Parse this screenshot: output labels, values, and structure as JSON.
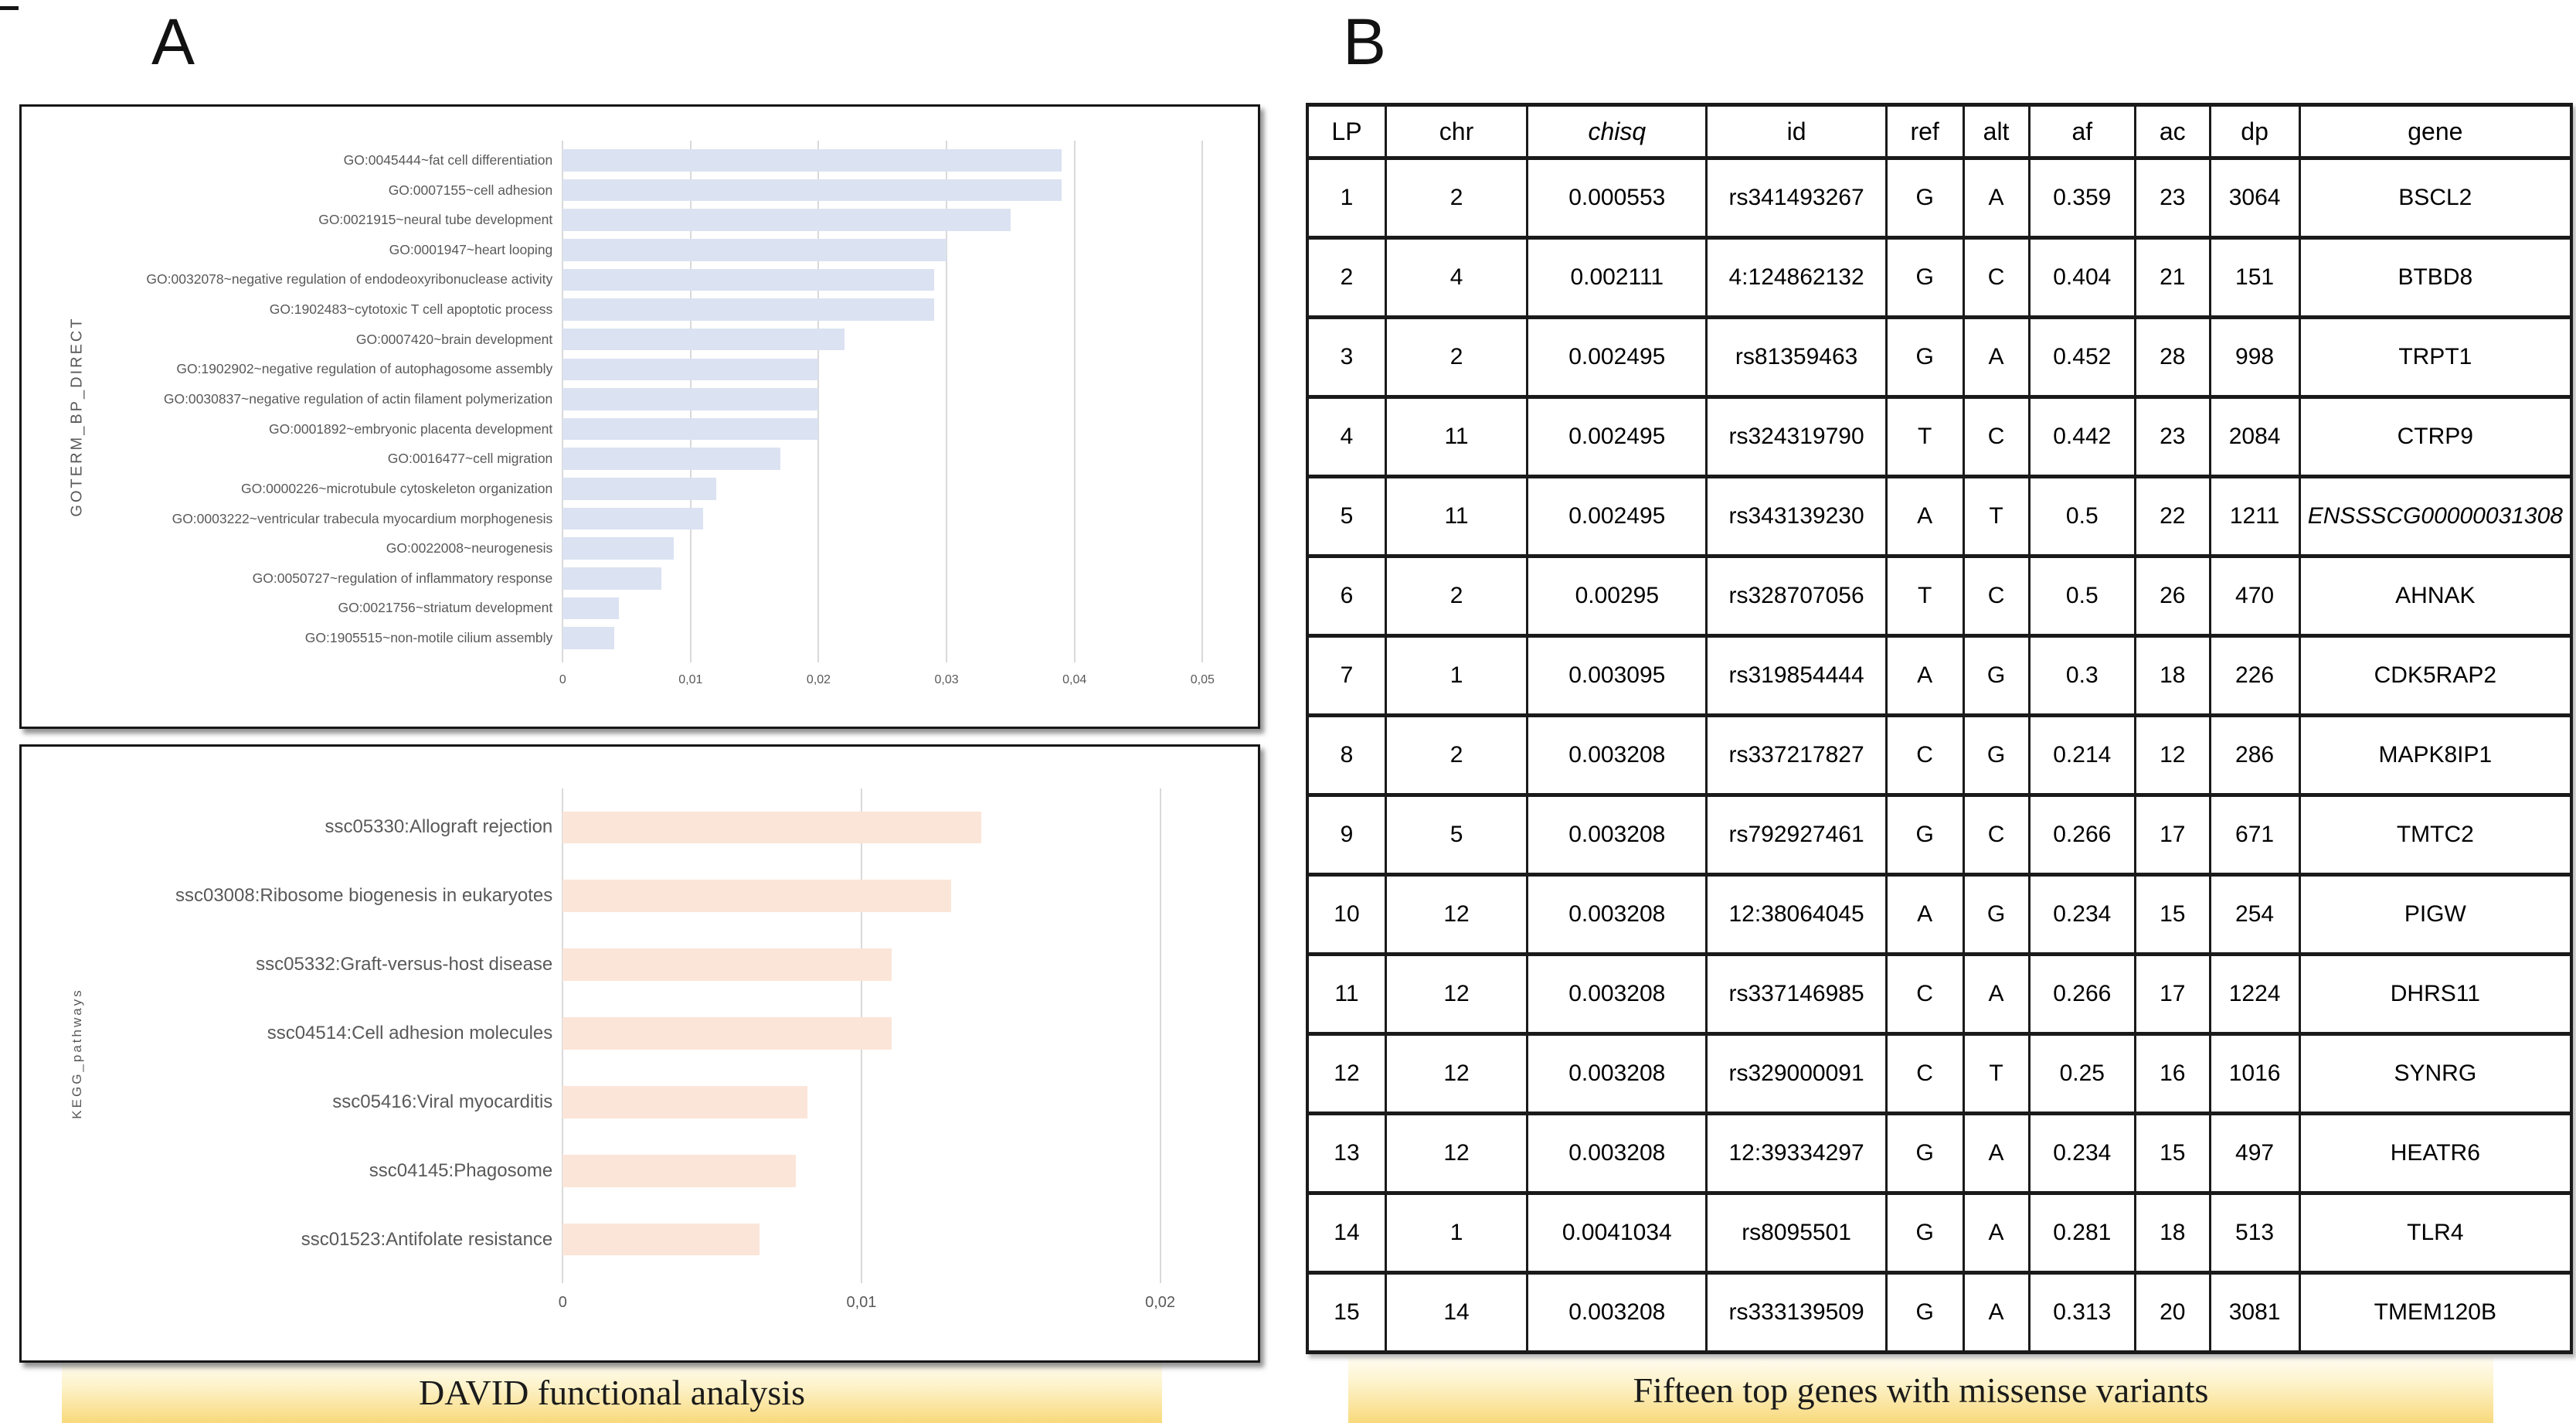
{
  "page": {
    "corner_mark": "-"
  },
  "panel_a": {
    "label": "A",
    "caption": "DAVID functional analysis"
  },
  "panel_b": {
    "label": "B",
    "caption": "Fifteen top genes with missense variants",
    "table": {
      "columns": [
        {
          "key": "lp",
          "label": "LP"
        },
        {
          "key": "chr",
          "label": "chr"
        },
        {
          "key": "chisq",
          "label": "chisq",
          "italic": true
        },
        {
          "key": "id",
          "label": "id"
        },
        {
          "key": "ref",
          "label": "ref"
        },
        {
          "key": "alt",
          "label": "alt"
        },
        {
          "key": "af",
          "label": "af"
        },
        {
          "key": "ac",
          "label": "ac"
        },
        {
          "key": "dp",
          "label": "dp"
        },
        {
          "key": "gene",
          "label": "gene"
        }
      ],
      "col_widths_pct": [
        6.2,
        11.2,
        14.2,
        14.2,
        6.1,
        5.2,
        8.4,
        5.9,
        7.1,
        21.5
      ],
      "rows": [
        {
          "lp": "1",
          "chr": "2",
          "chisq": "0.000553",
          "id": "rs341493267",
          "ref": "G",
          "alt": "A",
          "af": "0.359",
          "ac": "23",
          "dp": "3064",
          "gene": "BSCL2",
          "gene_italic": false
        },
        {
          "lp": "2",
          "chr": "4",
          "chisq": "0.002111",
          "id": "4:124862132",
          "ref": "G",
          "alt": "C",
          "af": "0.404",
          "ac": "21",
          "dp": "151",
          "gene": "BTBD8",
          "gene_italic": false
        },
        {
          "lp": "3",
          "chr": "2",
          "chisq": "0.002495",
          "id": "rs81359463",
          "ref": "G",
          "alt": "A",
          "af": "0.452",
          "ac": "28",
          "dp": "998",
          "gene": "TRPT1",
          "gene_italic": false
        },
        {
          "lp": "4",
          "chr": "11",
          "chisq": "0.002495",
          "id": "rs324319790",
          "ref": "T",
          "alt": "C",
          "af": "0.442",
          "ac": "23",
          "dp": "2084",
          "gene": "CTRP9",
          "gene_italic": false
        },
        {
          "lp": "5",
          "chr": "11",
          "chisq": "0.002495",
          "id": "rs343139230",
          "ref": "A",
          "alt": "T",
          "af": "0.5",
          "ac": "22",
          "dp": "1211",
          "gene": "ENSSSCG00000031308",
          "gene_italic": true
        },
        {
          "lp": "6",
          "chr": "2",
          "chisq": "0.00295",
          "id": "rs328707056",
          "ref": "T",
          "alt": "C",
          "af": "0.5",
          "ac": "26",
          "dp": "470",
          "gene": "AHNAK",
          "gene_italic": false
        },
        {
          "lp": "7",
          "chr": "1",
          "chisq": "0.003095",
          "id": "rs319854444",
          "ref": "A",
          "alt": "G",
          "af": "0.3",
          "ac": "18",
          "dp": "226",
          "gene": "CDK5RAP2",
          "gene_italic": false
        },
        {
          "lp": "8",
          "chr": "2",
          "chisq": "0.003208",
          "id": "rs337217827",
          "ref": "C",
          "alt": "G",
          "af": "0.214",
          "ac": "12",
          "dp": "286",
          "gene": "MAPK8IP1",
          "gene_italic": false
        },
        {
          "lp": "9",
          "chr": "5",
          "chisq": "0.003208",
          "id": "rs792927461",
          "ref": "G",
          "alt": "C",
          "af": "0.266",
          "ac": "17",
          "dp": "671",
          "gene": "TMTC2",
          "gene_italic": false
        },
        {
          "lp": "10",
          "chr": "12",
          "chisq": "0.003208",
          "id": "12:38064045",
          "ref": "A",
          "alt": "G",
          "af": "0.234",
          "ac": "15",
          "dp": "254",
          "gene": "PIGW",
          "gene_italic": false
        },
        {
          "lp": "11",
          "chr": "12",
          "chisq": "0.003208",
          "id": "rs337146985",
          "ref": "C",
          "alt": "A",
          "af": "0.266",
          "ac": "17",
          "dp": "1224",
          "gene": "DHRS11",
          "gene_italic": false
        },
        {
          "lp": "12",
          "chr": "12",
          "chisq": "0.003208",
          "id": "rs329000091",
          "ref": "C",
          "alt": "T",
          "af": "0.25",
          "ac": "16",
          "dp": "1016",
          "gene": "SYNRG",
          "gene_italic": false
        },
        {
          "lp": "13",
          "chr": "12",
          "chisq": "0.003208",
          "id": "12:39334297",
          "ref": "G",
          "alt": "A",
          "af": "0.234",
          "ac": "15",
          "dp": "497",
          "gene": "HEATR6",
          "gene_italic": false
        },
        {
          "lp": "14",
          "chr": "1",
          "chisq": "0.0041034",
          "id": "rs8095501",
          "ref": "G",
          "alt": "A",
          "af": "0.281",
          "ac": "18",
          "dp": "513",
          "gene": "TLR4",
          "gene_italic": false
        },
        {
          "lp": "15",
          "chr": "14",
          "chisq": "0.003208",
          "id": "rs333139509",
          "ref": "G",
          "alt": "A",
          "af": "0.313",
          "ac": "20",
          "dp": "3081",
          "gene": "TMEM120B",
          "gene_italic": false
        }
      ]
    }
  },
  "chart_data": [
    {
      "type": "bar",
      "orientation": "horizontal",
      "title": "",
      "ylabel": "GOTERM_BP_DIRECT",
      "xlabel": "",
      "grid": true,
      "legend_position": "none",
      "bar_color": "#dbe2f2",
      "xlim": [
        0,
        0.053
      ],
      "xtick_values": [
        0,
        0.01,
        0.02,
        0.03,
        0.04,
        0.05
      ],
      "xtick_labels": [
        "0",
        "0,01",
        "0,02",
        "0,03",
        "0,04",
        "0,05"
      ],
      "categories": [
        "GO:0045444~fat cell differentiation",
        "GO:0007155~cell adhesion",
        "GO:0021915~neural tube development",
        "GO:0001947~heart looping",
        "GO:0032078~negative regulation of endodeoxyribonuclease activity",
        "GO:1902483~cytotoxic T cell apoptotic process",
        "GO:0007420~brain development",
        "GO:1902902~negative regulation of autophagosome assembly",
        "GO:0030837~negative regulation of actin filament polymerization",
        "GO:0001892~embryonic placenta development",
        "GO:0016477~cell migration",
        "GO:0000226~microtubule cytoskeleton organization",
        "GO:0003222~ventricular trabecula myocardium morphogenesis",
        "GO:0022008~neurogenesis",
        "GO:0050727~regulation of inflammatory response",
        "GO:0021756~striatum development",
        "GO:1905515~non-motile cilium assembly"
      ],
      "values": [
        0.039,
        0.039,
        0.035,
        0.03,
        0.029,
        0.029,
        0.022,
        0.02,
        0.02,
        0.02,
        0.017,
        0.012,
        0.011,
        0.0087,
        0.0077,
        0.0044,
        0.004
      ]
    },
    {
      "type": "bar",
      "orientation": "horizontal",
      "title": "",
      "ylabel": "KEGG_pathways",
      "xlabel": "",
      "grid": true,
      "legend_position": "none",
      "bar_color": "#fbe5d8",
      "xlim": [
        0,
        0.0227
      ],
      "xtick_values": [
        0,
        0.01,
        0.02
      ],
      "xtick_labels": [
        "0",
        "0,01",
        "0,02"
      ],
      "categories": [
        "ssc05330:Allograft rejection",
        "ssc03008:Ribosome biogenesis in eukaryotes",
        "ssc05332:Graft-versus-host disease",
        "ssc04514:Cell adhesion molecules",
        "ssc05416:Viral myocarditis",
        "ssc04145:Phagosome",
        "ssc01523:Antifolate resistance"
      ],
      "values": [
        0.014,
        0.013,
        0.011,
        0.011,
        0.0082,
        0.0078,
        0.0066
      ]
    }
  ]
}
